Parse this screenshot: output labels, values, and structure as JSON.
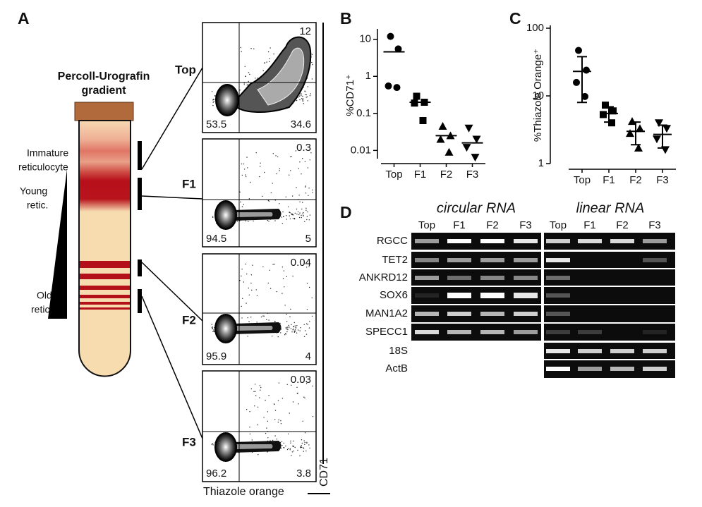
{
  "panel_a": {
    "label": "A",
    "tube_title": [
      "Percoll-Urografin",
      "gradient"
    ],
    "bands": [
      [
        "Immature",
        "reticulocyte"
      ],
      [
        "Young",
        "retic."
      ],
      [
        "Old",
        "retic."
      ]
    ],
    "flow": {
      "x_label": "Thiazole orange",
      "y_label": "CD71",
      "plots": [
        {
          "name": "Top",
          "upper_right": 12,
          "lower_left": 53.5,
          "lower_right": 34.6
        },
        {
          "name": "F1",
          "upper_right": 0.3,
          "lower_left": 94.5,
          "lower_right": 5
        },
        {
          "name": "F2",
          "upper_right": 0.04,
          "lower_left": 95.9,
          "lower_right": 4
        },
        {
          "name": "F3",
          "upper_right": 0.03,
          "lower_left": 96.2,
          "lower_right": 3.8
        }
      ]
    }
  },
  "chart_data": [
    {
      "type": "dot",
      "label": "B",
      "ylabel": "%CD71⁺",
      "log": true,
      "categories": [
        "Top",
        "F1",
        "F2",
        "F3"
      ],
      "markers": [
        "circle",
        "square",
        "triangle",
        "triangle-down"
      ],
      "points": [
        [
          12,
          5.5,
          0.55,
          0.5
        ],
        [
          0.29,
          0.2,
          0.19,
          0.064
        ],
        [
          0.045,
          0.025,
          0.02,
          0.009
        ],
        [
          0.04,
          0.02,
          0.012,
          0.0065
        ]
      ],
      "means": [
        4.6,
        0.2,
        0.025,
        0.016
      ],
      "ylim": [
        0.006,
        16
      ],
      "yticks": [
        0.01,
        0.1,
        1,
        10
      ]
    },
    {
      "type": "dot-sd",
      "label": "C",
      "ylabel": "%Thiazole Orange⁺",
      "log": true,
      "categories": [
        "Top",
        "F1",
        "F2",
        "F3"
      ],
      "markers": [
        "circle",
        "square",
        "triangle",
        "triangle-down"
      ],
      "points": [
        [
          47,
          24,
          15.8,
          9.8
        ],
        [
          7.3,
          6,
          5.3,
          4
        ],
        [
          4.2,
          3.3,
          2.8,
          1.7
        ],
        [
          4,
          3.3,
          2.3,
          1.6
        ]
      ],
      "means": [
        23,
        5.5,
        3,
        2.7
      ],
      "sd": [
        15,
        1.4,
        1.1,
        1
      ],
      "ylim": [
        1,
        100
      ],
      "yticks": [
        1,
        10,
        100
      ]
    }
  ],
  "panel_d": {
    "label": "D",
    "circular_title": "circular RNA",
    "linear_title": "linear RNA",
    "lanes": [
      "Top",
      "F1",
      "F2",
      "F3"
    ],
    "genes": [
      "RGCC",
      "TET2",
      "ANKRD12",
      "SOX6",
      "MAN1A2",
      "SPECC1",
      "18S",
      "ActB"
    ]
  }
}
